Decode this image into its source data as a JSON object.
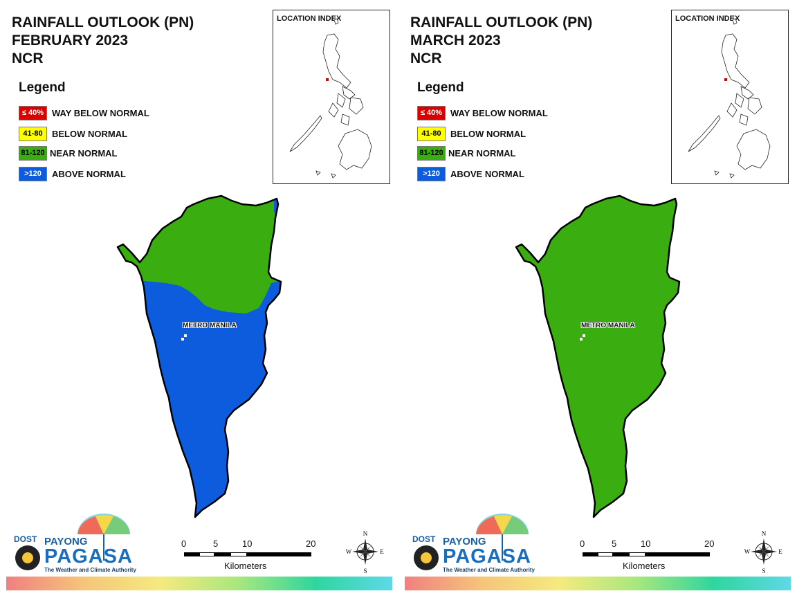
{
  "panels": [
    {
      "title_lines": [
        "RAINFALL OUTLOOK (PN)",
        "FEBRUARY 2023",
        "NCR"
      ],
      "legend": {
        "title": "Legend",
        "items": [
          {
            "swatch": "≤ 40%",
            "label": "WAY BELOW NORMAL",
            "color": "#dd0000",
            "text_color": "#ffffff"
          },
          {
            "swatch": "41-80",
            "label": "BELOW NORMAL",
            "color": "#ffff00",
            "text_color": "#000000"
          },
          {
            "swatch": "81-120",
            "label": "NEAR NORMAL",
            "color": "#3aad10",
            "text_color": "#000000"
          },
          {
            "swatch": ">120",
            "label": "ABOVE NORMAL",
            "color": "#0d5cde",
            "text_color": "#ffffff"
          }
        ]
      },
      "inset_label": "LOCATION INDEX",
      "place_label": "METRO MANILA",
      "map_classes": {
        "north": "NEAR NORMAL",
        "south": "ABOVE NORMAL"
      },
      "logo": {
        "dost": "DOST",
        "payong": "PAYONG",
        "pagasa": "PAGASA",
        "tagline": "The Weather and Climate Authority"
      },
      "scale": {
        "ticks": [
          "0",
          "5",
          "10",
          "20"
        ],
        "unit": "Kilometers"
      },
      "compass": {
        "n": "N",
        "s": "S",
        "e": "E",
        "w": "W"
      }
    },
    {
      "title_lines": [
        "RAINFALL OUTLOOK (PN)",
        "MARCH 2023",
        "NCR"
      ],
      "legend": {
        "title": "Legend",
        "items": [
          {
            "swatch": "≤ 40%",
            "label": "WAY BELOW NORMAL",
            "color": "#dd0000",
            "text_color": "#ffffff"
          },
          {
            "swatch": "41-80",
            "label": "BELOW NORMAL",
            "color": "#ffff00",
            "text_color": "#000000"
          },
          {
            "swatch": "81-120",
            "label": "NEAR NORMAL",
            "color": "#3aad10",
            "text_color": "#000000"
          },
          {
            "swatch": ">120",
            "label": "ABOVE NORMAL",
            "color": "#0d5cde",
            "text_color": "#ffffff"
          }
        ]
      },
      "inset_label": "LOCATION INDEX",
      "place_label": "METRO MANILA",
      "map_classes": {
        "north": "NEAR NORMAL",
        "south": "NEAR NORMAL"
      },
      "logo": {
        "dost": "DOST",
        "payong": "PAYONG",
        "pagasa": "PAGASA",
        "tagline": "The Weather and Climate Authority"
      },
      "scale": {
        "ticks": [
          "0",
          "5",
          "10",
          "20"
        ],
        "unit": "Kilometers"
      },
      "compass": {
        "n": "N",
        "s": "S",
        "e": "E",
        "w": "W"
      }
    }
  ]
}
